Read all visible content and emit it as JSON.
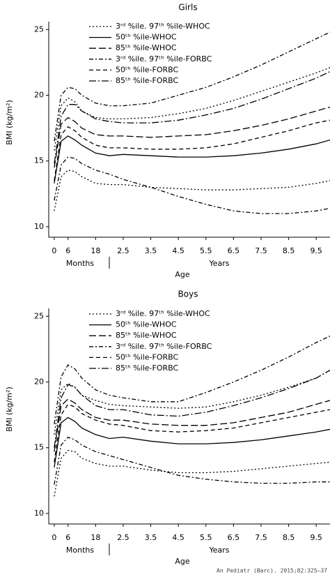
{
  "chart_data": [
    {
      "type": "line",
      "title": "Girls",
      "ylabel": "BMI (kg/m²)",
      "xlabel": "Age",
      "period_labels": [
        "Months",
        "Years"
      ],
      "x": [
        0,
        3,
        6,
        9,
        12,
        18,
        24,
        30,
        42,
        54,
        66,
        78,
        90,
        102,
        114,
        120
      ],
      "xlim": [
        -2.4,
        120
      ],
      "ylim": [
        9.2,
        25.6
      ],
      "yticks": [
        10,
        15,
        20,
        25
      ],
      "xticks": [
        0,
        6,
        18,
        {
          "value": 30,
          "label": "2.5"
        },
        {
          "value": 42,
          "label": "3.5"
        },
        {
          "value": 54,
          "label": "4.5"
        },
        {
          "value": 66,
          "label": "5.5"
        },
        {
          "value": 78,
          "label": "6.5"
        },
        {
          "value": 90,
          "label": "7.5"
        },
        {
          "value": 102,
          "label": "8.5"
        },
        {
          "value": 114,
          "label": "9.5"
        }
      ],
      "series": [
        {
          "name": "3ʳᵈ %ile. 97ᵗʰ %ile-WHOC",
          "color": "#000000",
          "dash": "2,3",
          "values": [
            11.2,
            13.8,
            14.3,
            14.2,
            13.8,
            13.3,
            13.2,
            13.2,
            13.0,
            12.9,
            12.8,
            12.8,
            12.9,
            13.0,
            13.3,
            13.5
          ],
          "upper_values": [
            15.8,
            19.2,
            19.8,
            19.5,
            18.8,
            18.3,
            18.2,
            18.2,
            18.3,
            18.6,
            19.0,
            19.6,
            20.3,
            21.0,
            21.7,
            22.1
          ]
        },
        {
          "name": "50ᵗʰ %ile-WHOC",
          "color": "#000000",
          "dash": "none",
          "values": [
            13.3,
            16.5,
            16.9,
            16.6,
            16.2,
            15.6,
            15.4,
            15.5,
            15.4,
            15.3,
            15.3,
            15.4,
            15.6,
            15.9,
            16.3,
            16.6
          ]
        },
        {
          "name": "85ᵗʰ %ile-WHOC",
          "color": "#000000",
          "dash": "10,4",
          "values": [
            14.5,
            17.8,
            18.3,
            18.0,
            17.5,
            17.0,
            16.9,
            16.9,
            16.8,
            16.9,
            17.0,
            17.3,
            17.7,
            18.2,
            18.8,
            19.1
          ]
        },
        {
          "name": "3ʳᵈ %ile. 97ᵗʰ %ile-FORBC",
          "color": "#000000",
          "dash": "6,3,2,3",
          "values": [
            12.0,
            14.7,
            15.3,
            15.2,
            14.8,
            14.3,
            14.0,
            13.6,
            13.0,
            12.3,
            11.7,
            11.2,
            11.0,
            11.0,
            11.2,
            11.4
          ],
          "upper_values": [
            16.5,
            20.0,
            20.6,
            20.5,
            20.0,
            19.4,
            19.2,
            19.2,
            19.4,
            20.0,
            20.6,
            21.4,
            22.3,
            23.3,
            24.3,
            24.8
          ]
        },
        {
          "name": "50ᵗʰ %ile-FORBC",
          "color": "#000000",
          "dash": "6,4",
          "values": [
            13.5,
            17.0,
            17.6,
            17.3,
            16.8,
            16.2,
            16.0,
            16.0,
            15.9,
            15.9,
            16.0,
            16.3,
            16.8,
            17.3,
            17.9,
            18.1
          ]
        },
        {
          "name": "85ᵗʰ %ile-FORBC",
          "color": "#000000",
          "dash": "10,3,2,3",
          "values": [
            14.8,
            18.4,
            19.3,
            19.3,
            18.8,
            18.2,
            18.0,
            17.9,
            17.9,
            18.1,
            18.5,
            19.0,
            19.7,
            20.5,
            21.3,
            21.8
          ]
        }
      ]
    },
    {
      "type": "line",
      "title": "Boys",
      "ylabel": "BMI (kg/m²)",
      "xlabel": "Age",
      "period_labels": [
        "Months",
        "Years"
      ],
      "x": [
        0,
        3,
        6,
        9,
        12,
        18,
        24,
        30,
        42,
        54,
        66,
        78,
        90,
        102,
        114,
        120
      ],
      "xlim": [
        -2.4,
        120
      ],
      "ylim": [
        9.2,
        25.6
      ],
      "yticks": [
        10,
        15,
        20,
        25
      ],
      "xticks": [
        0,
        6,
        18,
        {
          "value": 30,
          "label": "2.5"
        },
        {
          "value": 42,
          "label": "3.5"
        },
        {
          "value": 54,
          "label": "4.5"
        },
        {
          "value": 66,
          "label": "5.5"
        },
        {
          "value": 78,
          "label": "6.5"
        },
        {
          "value": 90,
          "label": "7.5"
        },
        {
          "value": 102,
          "label": "8.5"
        },
        {
          "value": 114,
          "label": "9.5"
        }
      ],
      "series": [
        {
          "name": "3ʳᵈ %ile. 97ᵗʰ %ile-WHOC",
          "color": "#000000",
          "dash": "2,3",
          "values": [
            11.3,
            14.2,
            14.8,
            14.7,
            14.2,
            13.8,
            13.6,
            13.6,
            13.3,
            13.1,
            13.1,
            13.2,
            13.4,
            13.6,
            13.8,
            13.9
          ],
          "upper_values": [
            16.0,
            19.4,
            19.9,
            19.6,
            19.0,
            18.6,
            18.3,
            18.2,
            18.1,
            18.0,
            18.1,
            18.5,
            19.0,
            19.6,
            20.3,
            20.9
          ]
        },
        {
          "name": "50ᵗʰ %ile-WHOC",
          "color": "#000000",
          "dash": "none",
          "values": [
            13.5,
            16.9,
            17.3,
            17.0,
            16.5,
            16.0,
            15.7,
            15.8,
            15.5,
            15.3,
            15.3,
            15.4,
            15.6,
            15.9,
            16.2,
            16.4
          ]
        },
        {
          "name": "85ᵗʰ %ile-WHOC",
          "color": "#000000",
          "dash": "10,4",
          "values": [
            14.7,
            18.2,
            18.7,
            18.4,
            17.9,
            17.3,
            17.1,
            17.1,
            16.8,
            16.7,
            16.7,
            16.9,
            17.3,
            17.7,
            18.3,
            18.6
          ]
        },
        {
          "name": "3ʳᵈ %ile. 97ᵗʰ %ile-FORBC",
          "color": "#000000",
          "dash": "6,3,2,3",
          "values": [
            12.2,
            15.2,
            15.8,
            15.6,
            15.2,
            14.7,
            14.4,
            14.1,
            13.5,
            12.9,
            12.6,
            12.4,
            12.3,
            12.3,
            12.4,
            12.4
          ],
          "upper_values": [
            16.8,
            20.4,
            21.3,
            21.0,
            20.3,
            19.4,
            19.0,
            18.8,
            18.5,
            18.5,
            19.2,
            20.0,
            20.9,
            21.9,
            23.0,
            23.5
          ]
        },
        {
          "name": "50ᵗʰ %ile-FORBC",
          "color": "#000000",
          "dash": "6,4",
          "values": [
            13.9,
            17.5,
            18.3,
            18.1,
            17.6,
            17.1,
            16.8,
            16.7,
            16.3,
            16.2,
            16.3,
            16.5,
            16.9,
            17.3,
            17.7,
            17.9
          ]
        },
        {
          "name": "85ᵗʰ %ile-FORBC",
          "color": "#000000",
          "dash": "10,3,2,3",
          "values": [
            15.0,
            18.8,
            19.8,
            19.6,
            19.0,
            18.2,
            17.9,
            17.9,
            17.5,
            17.4,
            17.7,
            18.2,
            18.8,
            19.5,
            20.3,
            20.9
          ]
        }
      ]
    }
  ],
  "footer": "An Pediatr (Barc). 2015;82:325–37"
}
